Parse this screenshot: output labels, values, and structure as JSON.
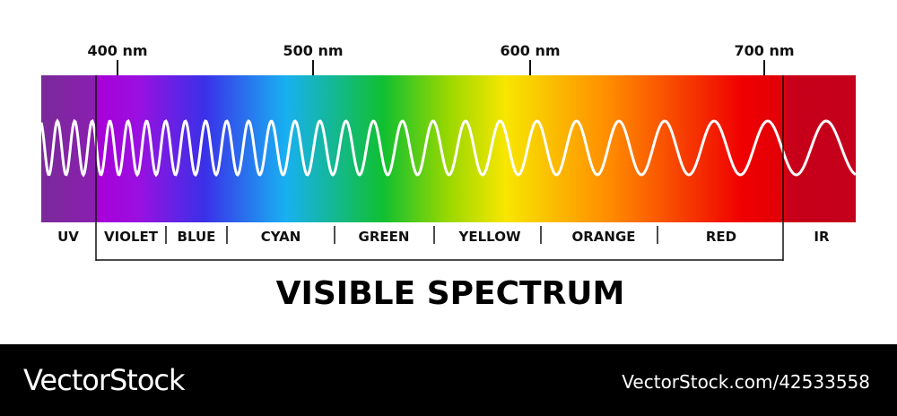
{
  "header": {
    "ticks": [
      "400 nm",
      "500 nm",
      "600 nm",
      "700 nm"
    ]
  },
  "bands": [
    "UV",
    "VIOLET",
    "BLUE",
    "CYAN",
    "GREEN",
    "YELLOW",
    "ORANGE",
    "RED",
    "IR"
  ],
  "title": "VISIBLE SPECTRUM",
  "footer": {
    "brand": "VectorStock",
    "id": "VectorStock.com/42533558"
  }
}
